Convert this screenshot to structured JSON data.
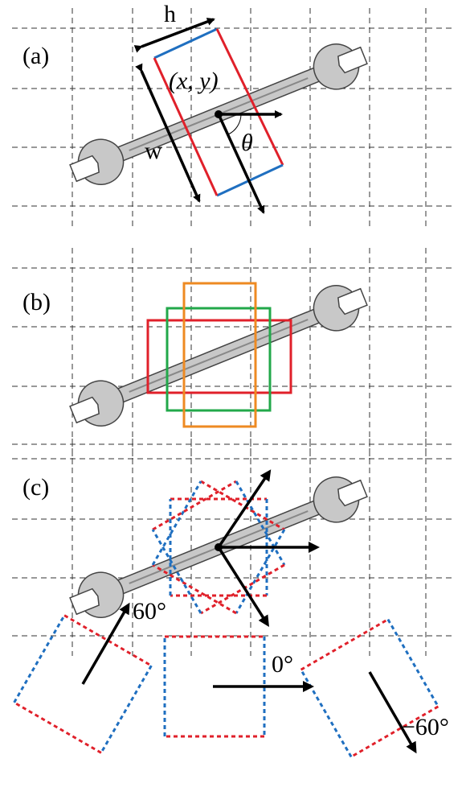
{
  "panels": [
    {
      "label": "(a)",
      "annotations": [
        "h",
        "w",
        "(x, y)",
        "θ"
      ]
    },
    {
      "label": "(b)"
    },
    {
      "label": "(c)"
    }
  ],
  "angles": [
    "60°",
    "0°",
    "−60°"
  ]
}
